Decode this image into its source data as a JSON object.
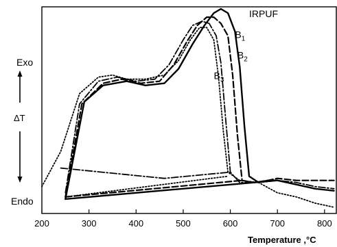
{
  "chart_data": {
    "type": "line",
    "xlabel": "Temperature ,°C",
    "ylabel": "ΔT",
    "y_top_label": "Exo",
    "y_bottom_label": "Endo",
    "xlim": [
      200,
      825
    ],
    "ylim": [
      0,
      100
    ],
    "x_ticks": [
      200,
      300,
      400,
      500,
      600,
      700,
      800
    ],
    "y_axis_numeric": false,
    "grid": false,
    "legend": "labels placed next to curve peaks",
    "series": [
      {
        "name": "IRPUF",
        "style": "solid",
        "points": [
          [
            250,
            7
          ],
          [
            290,
            54
          ],
          [
            330,
            62
          ],
          [
            380,
            64
          ],
          [
            420,
            62
          ],
          [
            460,
            63
          ],
          [
            490,
            70
          ],
          [
            520,
            82
          ],
          [
            545,
            91
          ],
          [
            565,
            97
          ],
          [
            580,
            99
          ],
          [
            595,
            97
          ],
          [
            610,
            88
          ],
          [
            620,
            71
          ],
          [
            630,
            42
          ],
          [
            640,
            18
          ],
          [
            660,
            15
          ],
          [
            680,
            16
          ],
          [
            700,
            16
          ],
          [
            740,
            14
          ],
          [
            780,
            12
          ],
          [
            820,
            11
          ]
        ]
      },
      {
        "name": "IRPUF baseline",
        "style": "solid",
        "points": [
          [
            250,
            7
          ],
          [
            700,
            16
          ]
        ]
      },
      {
        "name": "B1",
        "style": "dashed",
        "points": [
          [
            250,
            8
          ],
          [
            285,
            53
          ],
          [
            330,
            63
          ],
          [
            370,
            65
          ],
          [
            410,
            63
          ],
          [
            450,
            64
          ],
          [
            480,
            72
          ],
          [
            510,
            84
          ],
          [
            530,
            91
          ],
          [
            550,
            95
          ],
          [
            565,
            95
          ],
          [
            580,
            92
          ],
          [
            595,
            86
          ],
          [
            605,
            67
          ],
          [
            615,
            38
          ],
          [
            625,
            16
          ],
          [
            650,
            15
          ],
          [
            680,
            16
          ],
          [
            700,
            17
          ],
          [
            740,
            16
          ],
          [
            780,
            16
          ],
          [
            820,
            16
          ]
        ]
      },
      {
        "name": "B1 baseline",
        "style": "dashed",
        "points": [
          [
            250,
            8
          ],
          [
            625,
            16
          ]
        ]
      },
      {
        "name": "B2",
        "style": "dash-dot",
        "points": [
          [
            250,
            10
          ],
          [
            280,
            53
          ],
          [
            320,
            64
          ],
          [
            360,
            66
          ],
          [
            400,
            64
          ],
          [
            440,
            65
          ],
          [
            470,
            72
          ],
          [
            500,
            84
          ],
          [
            520,
            91
          ],
          [
            540,
            93
          ],
          [
            555,
            92
          ],
          [
            570,
            86
          ],
          [
            580,
            73
          ],
          [
            590,
            46
          ],
          [
            600,
            20
          ],
          [
            620,
            15
          ],
          [
            660,
            15
          ],
          [
            700,
            16
          ],
          [
            740,
            15
          ],
          [
            780,
            13
          ],
          [
            820,
            12
          ]
        ]
      },
      {
        "name": "B2 tail",
        "style": "dash-dot",
        "points": [
          [
            240,
            22
          ],
          [
            460,
            17
          ],
          [
            600,
            20
          ]
        ]
      },
      {
        "name": "B3",
        "style": "dotted",
        "points": [
          [
            200,
            13
          ],
          [
            240,
            30
          ],
          [
            280,
            58
          ],
          [
            320,
            66
          ],
          [
            350,
            67
          ],
          [
            380,
            65
          ],
          [
            420,
            65
          ],
          [
            460,
            67
          ],
          [
            490,
            74
          ],
          [
            515,
            84
          ],
          [
            535,
            90
          ],
          [
            550,
            90
          ],
          [
            565,
            84
          ],
          [
            575,
            66
          ],
          [
            585,
            40
          ],
          [
            595,
            20
          ],
          [
            620,
            16
          ],
          [
            660,
            15
          ],
          [
            700,
            10
          ],
          [
            740,
            8
          ],
          [
            780,
            5
          ],
          [
            820,
            3
          ]
        ]
      },
      {
        "name": "B3 baseline",
        "style": "dotted",
        "points": [
          [
            250,
            8
          ],
          [
            595,
            18
          ]
        ]
      }
    ],
    "annotations": [
      {
        "text": "IRPUF",
        "x": 640,
        "y": 95
      },
      {
        "text": "B",
        "subscript": "1",
        "x": 610,
        "y": 85
      },
      {
        "text": "B",
        "subscript": "2",
        "x": 615,
        "y": 75
      },
      {
        "text": "B",
        "subscript": "3",
        "x": 565,
        "y": 65
      }
    ]
  }
}
